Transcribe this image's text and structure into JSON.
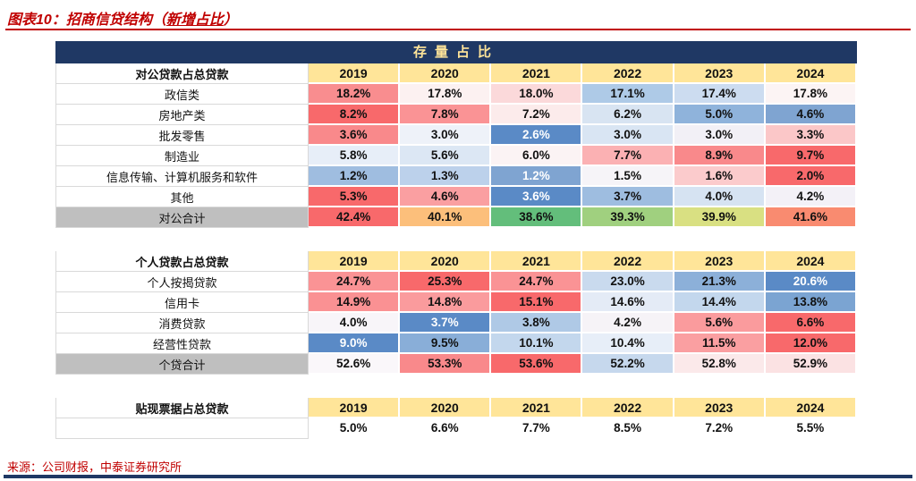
{
  "title": {
    "prefix": "图表10：",
    "main": "招商信贷结构（",
    "underlined": "新增占比",
    "suffix": "）"
  },
  "table": {
    "header": "存量占比"
  },
  "source": "来源：公司财报，中泰证券研究所",
  "colors": {
    "accent_red": "#C00000",
    "navy": "#1F3864",
    "navy_header_text": "#FFE599",
    "year_header_bg": "#FFE599",
    "total_label_bg": "#BFBFBF"
  },
  "chart_data": {
    "type": "heatmap",
    "title": "存量占比",
    "columns": [
      "2019",
      "2020",
      "2021",
      "2022",
      "2023",
      "2024"
    ],
    "sections": [
      {
        "label": "对公贷款占总贷款",
        "rows": [
          {
            "label": "政信类",
            "values": [
              "18.2%",
              "17.8%",
              "18.0%",
              "17.1%",
              "17.4%",
              "17.8%"
            ],
            "colors": [
              "#F98D8F",
              "#FCF1F1",
              "#FBD9DA",
              "#AECAE7",
              "#CCDCF0",
              "#FCF4F4"
            ],
            "white_text": []
          },
          {
            "label": "房地产类",
            "values": [
              "8.2%",
              "7.8%",
              "7.2%",
              "6.2%",
              "5.0%",
              "4.6%"
            ],
            "colors": [
              "#F8696B",
              "#FA9395",
              "#FCEBEB",
              "#D8E4F2",
              "#8FB3DB",
              "#7FA4D1"
            ],
            "white_text": []
          },
          {
            "label": "批发零售",
            "values": [
              "3.6%",
              "3.0%",
              "2.6%",
              "3.0%",
              "3.0%",
              "3.3%"
            ],
            "colors": [
              "#F9898B",
              "#EEF2F9",
              "#5A8AC6",
              "#D9E5F3",
              "#F2F0F6",
              "#FBC7C8"
            ],
            "white_text": [
              2
            ]
          },
          {
            "label": "制造业",
            "values": [
              "5.8%",
              "5.6%",
              "6.0%",
              "7.7%",
              "8.9%",
              "9.7%"
            ],
            "colors": [
              "#E7EEF8",
              "#DCE7F4",
              "#FBF3F4",
              "#FBB1B3",
              "#F9898B",
              "#F8696B"
            ],
            "white_text": []
          },
          {
            "label": "信息传输、计算机服务和软件",
            "values": [
              "1.2%",
              "1.3%",
              "1.2%",
              "1.5%",
              "1.6%",
              "2.0%"
            ],
            "colors": [
              "#9FBDE0",
              "#BCD1EB",
              "#7FA4D1",
              "#F6F4F8",
              "#FBCBCC",
              "#F8696B"
            ],
            "white_text": [
              2
            ]
          },
          {
            "label": "其他",
            "values": [
              "5.3%",
              "4.6%",
              "3.6%",
              "3.7%",
              "4.0%",
              "4.2%"
            ],
            "colors": [
              "#F8696B",
              "#FA9FA1",
              "#5A8AC6",
              "#9EBDE0",
              "#D6E3F2",
              "#F3F1F7"
            ],
            "white_text": [
              2
            ]
          },
          {
            "label": "对公合计",
            "total": true,
            "values": [
              "42.4%",
              "40.1%",
              "38.6%",
              "39.3%",
              "39.9%",
              "41.6%"
            ],
            "colors": [
              "#F8696B",
              "#FCBF7B",
              "#63BE7B",
              "#A0D07F",
              "#D9E082",
              "#F98B70"
            ],
            "white_text": []
          }
        ]
      },
      {
        "label": "个人贷款占总贷款",
        "rows": [
          {
            "label": "个人按揭贷款",
            "values": [
              "24.7%",
              "25.3%",
              "24.7%",
              "23.0%",
              "21.3%",
              "20.6%"
            ],
            "colors": [
              "#FA9395",
              "#F8696B",
              "#FA9395",
              "#C9DAEE",
              "#8CB0D9",
              "#5A8AC6"
            ],
            "white_text": [
              5
            ]
          },
          {
            "label": "信用卡",
            "values": [
              "14.9%",
              "14.8%",
              "15.1%",
              "14.6%",
              "14.4%",
              "13.8%"
            ],
            "colors": [
              "#FA9193",
              "#FA9B9D",
              "#F8696B",
              "#E4EBF6",
              "#C3D7ED",
              "#7BA4D2"
            ],
            "white_text": []
          },
          {
            "label": "消费贷款",
            "values": [
              "4.0%",
              "3.7%",
              "3.8%",
              "4.2%",
              "5.6%",
              "6.6%"
            ],
            "colors": [
              "#F8F5F9",
              "#5A8AC6",
              "#AFC9E6",
              "#F6F3F7",
              "#FA9B9D",
              "#F8696B"
            ],
            "white_text": [
              1
            ]
          },
          {
            "label": "经营性贷款",
            "values": [
              "9.0%",
              "9.5%",
              "10.1%",
              "10.4%",
              "11.5%",
              "12.0%"
            ],
            "colors": [
              "#5A8AC6",
              "#89AED8",
              "#C3D7ED",
              "#E7EEF8",
              "#FA9FA1",
              "#F8696B"
            ],
            "white_text": [
              0
            ]
          },
          {
            "label": "个贷合计",
            "total": true,
            "values": [
              "52.6%",
              "53.3%",
              "53.6%",
              "52.2%",
              "52.8%",
              "52.9%"
            ],
            "colors": [
              "#FAF7FA",
              "#F9898B",
              "#F8696B",
              "#C6D8ED",
              "#FBE9EA",
              "#FBE2E3"
            ],
            "white_text": []
          }
        ]
      },
      {
        "label": "贴现票据占总贷款",
        "rows": [
          {
            "label": "",
            "values": [
              "5.0%",
              "6.6%",
              "7.7%",
              "8.5%",
              "7.2%",
              "5.5%"
            ],
            "colors": [
              "#FFFFFF",
              "#FFFFFF",
              "#FFFFFF",
              "#FFFFFF",
              "#FFFFFF",
              "#FFFFFF"
            ],
            "white_text": []
          }
        ]
      }
    ]
  }
}
